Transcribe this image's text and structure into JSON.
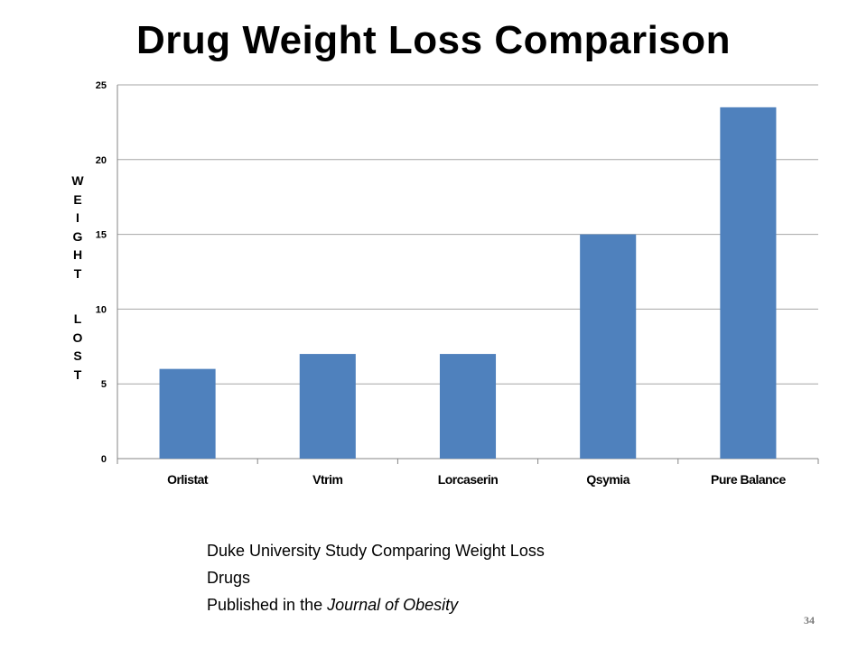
{
  "title": "Drug Weight Loss Comparison",
  "chart_data": {
    "type": "bar",
    "title": "Drug Weight Loss Comparison",
    "categories": [
      "Orlistat",
      "Vtrim",
      "Lorcaserin",
      "Qsymia",
      "Pure Balance"
    ],
    "values": [
      6,
      7,
      7,
      15,
      23.5
    ],
    "xlabel": "",
    "ylabel": "WEIGHT LOST",
    "ylim": [
      0,
      25
    ],
    "yticks": [
      0,
      5,
      10,
      15,
      20,
      25
    ],
    "grid": true,
    "legend": "none",
    "bar_color": "#4f81bd"
  },
  "ylabel_word1": "WEIGHT",
  "ylabel_word2": "LOST",
  "caption": {
    "line1": "Duke University Study Comparing  Weight Loss",
    "line2": "Drugs",
    "line3_prefix": "Published in the ",
    "line3_italic": "Journal of Obesity"
  },
  "slide_number": "34"
}
